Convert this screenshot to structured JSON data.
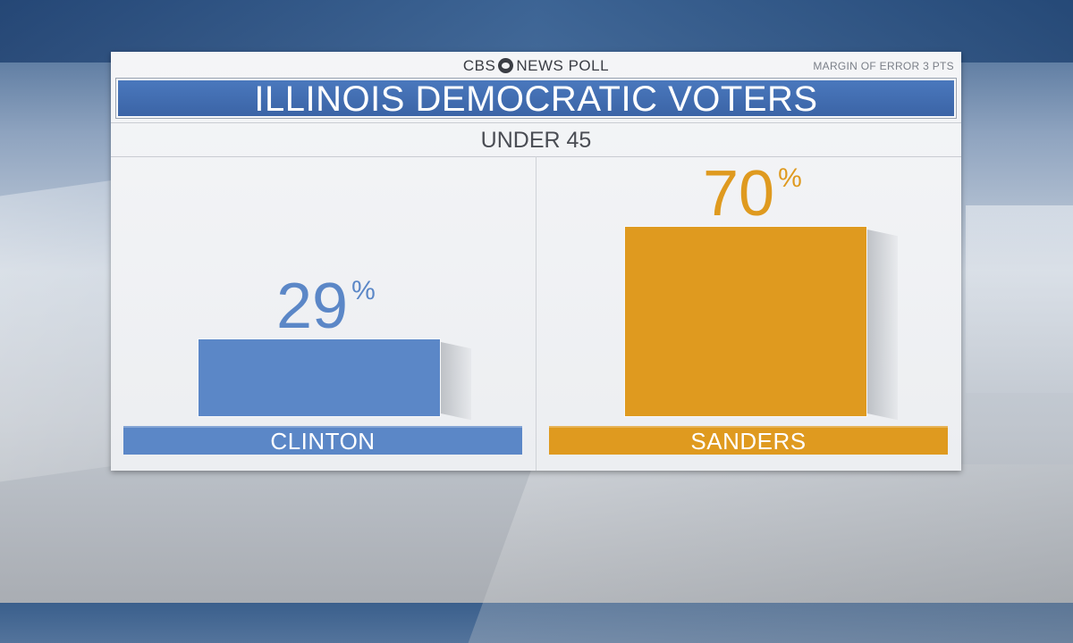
{
  "header": {
    "brand_left": "CBS",
    "brand_right": "NEWS POLL",
    "margin_of_error": "MARGIN OF ERROR 3 PTS",
    "title": "ILLINOIS DEMOCRATIC VOTERS",
    "subtitle": "UNDER 45"
  },
  "colors": {
    "clinton": "#5b87c7",
    "sanders": "#df9a1f",
    "title_bar": "#3f6aad"
  },
  "chart_data": {
    "type": "bar",
    "title": "ILLINOIS DEMOCRATIC VOTERS",
    "subtitle": "UNDER 45",
    "categories": [
      "CLINTON",
      "SANDERS"
    ],
    "values": [
      29,
      70
    ],
    "value_labels": [
      "29",
      "70"
    ],
    "unit": "%",
    "ylim": [
      0,
      100
    ],
    "grid": false,
    "legend": "none"
  }
}
